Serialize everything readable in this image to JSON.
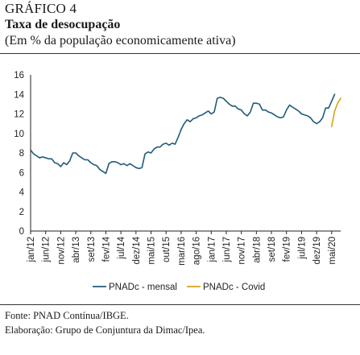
{
  "header": {
    "label": "GRÁFICO 4",
    "title": "Taxa de desocupação",
    "subtitle": "(Em % da população economicamente ativa)"
  },
  "footer": {
    "source": "Fonte: PNAD Contínua/IBGE.",
    "credit": "Elaboração: Grupo de Conjuntura da Dimac/Ipea."
  },
  "colors": {
    "mensal": "#1f5b7a",
    "covid": "#d7a21c",
    "axis": "#222222"
  },
  "chart_data": {
    "type": "line",
    "title": "Taxa de desocupação",
    "ylim": [
      0,
      16
    ],
    "yticks": [
      0,
      2,
      4,
      6,
      8,
      10,
      12,
      14,
      16
    ],
    "xlim": [
      "jan/12",
      "ago/20"
    ],
    "x_tick_labels": [
      "jan/12",
      "jun/12",
      "nov/12",
      "abr/13",
      "set/13",
      "fev/14",
      "jul/14",
      "dez/14",
      "mai/15",
      "out/15",
      "mar/16",
      "ago/16",
      "jan/17",
      "jun/17",
      "nov/17",
      "abr/18",
      "set/18",
      "fev/19",
      "jul/19",
      "dez/19",
      "mai/20"
    ],
    "legend": {
      "placement": "bottom"
    },
    "grid": false,
    "series": [
      {
        "name": "PNADc - mensal",
        "start": "jan/12",
        "frequency": "monthly",
        "values": [
          8.3,
          7.9,
          7.7,
          7.5,
          7.6,
          7.5,
          7.4,
          7.4,
          7.0,
          6.9,
          6.6,
          7.0,
          6.8,
          7.2,
          8.0,
          8.0,
          7.7,
          7.5,
          7.3,
          7.3,
          7.0,
          6.8,
          6.7,
          6.3,
          6.1,
          5.9,
          6.9,
          7.1,
          7.1,
          7.0,
          6.8,
          6.9,
          6.7,
          6.9,
          6.7,
          6.5,
          6.4,
          6.5,
          7.9,
          8.1,
          8.0,
          8.4,
          8.6,
          8.6,
          8.9,
          9.0,
          8.8,
          9.0,
          8.9,
          9.6,
          10.4,
          11.0,
          11.4,
          11.2,
          11.5,
          11.6,
          11.8,
          11.9,
          12.1,
          12.3,
          12.0,
          12.2,
          13.6,
          13.7,
          13.6,
          13.3,
          13.0,
          12.8,
          12.8,
          12.5,
          12.4,
          12.0,
          11.8,
          12.2,
          13.1,
          13.1,
          13.0,
          12.4,
          12.4,
          12.2,
          12.1,
          11.9,
          11.7,
          11.6,
          11.7,
          12.4,
          12.9,
          12.7,
          12.5,
          12.3,
          12.0,
          11.9,
          11.8,
          11.6,
          11.2,
          11.0,
          11.2,
          11.6,
          12.6,
          12.6,
          13.3,
          14.0
        ]
      },
      {
        "name": "PNADc - Covid",
        "start": "mai/20",
        "frequency": "monthly",
        "values": [
          10.7,
          12.3,
          13.1,
          13.6
        ]
      }
    ]
  }
}
